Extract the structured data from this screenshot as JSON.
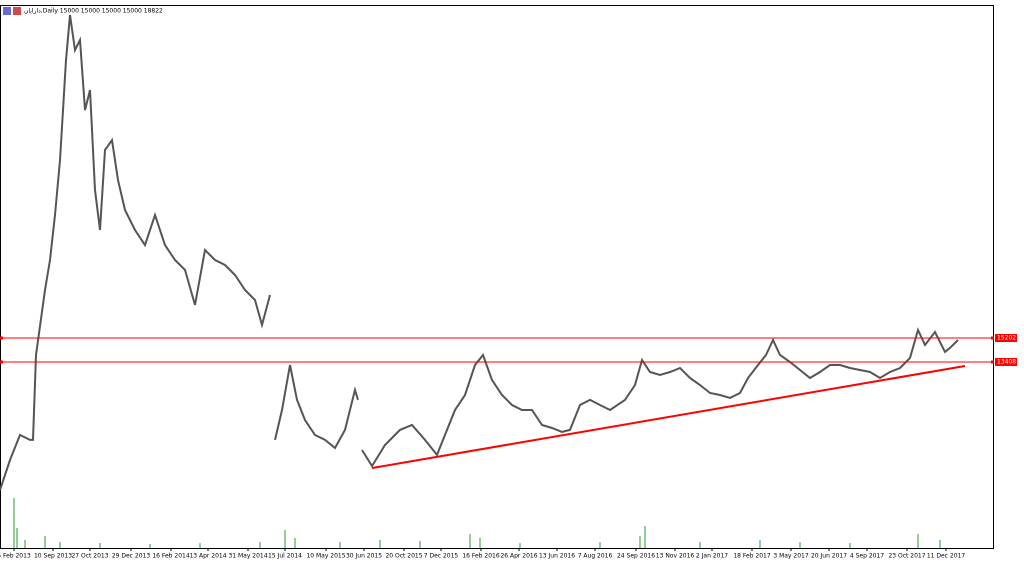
{
  "chart_data": {
    "type": "line",
    "title": "دارایان,Daily  15000 15000 15000 15000  18822",
    "xlim": [
      0,
      993
    ],
    "ylim": [
      -500,
      40100
    ],
    "xticks": [
      {
        "value": 14,
        "label": "5 Feb 2013"
      },
      {
        "value": 53,
        "label": "10 Sep 2013"
      },
      {
        "value": 90,
        "label": "27 Oct 2013"
      },
      {
        "value": 131,
        "label": "29 Dec 2013"
      },
      {
        "value": 171,
        "label": "16 Feb 2014"
      },
      {
        "value": 208,
        "label": "13 Apr 2014"
      },
      {
        "value": 248,
        "label": "31 May 2014"
      },
      {
        "value": 285,
        "label": "15 Jul 2014"
      },
      {
        "value": 326,
        "label": "10 May 2015"
      },
      {
        "value": 364,
        "label": "30 Jun 2015"
      },
      {
        "value": 404,
        "label": "20 Oct 2015"
      },
      {
        "value": 441,
        "label": "7 Dec 2015"
      },
      {
        "value": 481,
        "label": "16 Feb 2016"
      },
      {
        "value": 519,
        "label": "26 Apr 2016"
      },
      {
        "value": 557,
        "label": "13 Jun 2016"
      },
      {
        "value": 595,
        "label": "7 Aug 2016"
      },
      {
        "value": 636,
        "label": "24 Sep 2016"
      },
      {
        "value": 675,
        "label": "13 Nov 2016"
      },
      {
        "value": 712,
        "label": "2 Jan 2017"
      },
      {
        "value": 752,
        "label": "18 Feb 2017"
      },
      {
        "value": 791,
        "label": "3 May 2017"
      },
      {
        "value": 829,
        "label": "20 Jun 2017"
      },
      {
        "value": 867,
        "label": "4 Sep 2017"
      },
      {
        "value": 907,
        "label": "23 Oct 2017"
      },
      {
        "value": 946,
        "label": "11 Dec 2017"
      }
    ],
    "series": [
      {
        "color": "#555555",
        "x": [
          0,
          10,
          20,
          30,
          33,
          36,
          45,
          50,
          55,
          60,
          66,
          70,
          75,
          80,
          85,
          90,
          95,
          100,
          105,
          112,
          118,
          125,
          135,
          145,
          155,
          165,
          175,
          185,
          195,
          205,
          215,
          225,
          235,
          245,
          255,
          262,
          270,
          272,
          275,
          282,
          290,
          297,
          305,
          315,
          325,
          335,
          345,
          355,
          358,
          360,
          362,
          372,
          385,
          400,
          412,
          425,
          437,
          447,
          455,
          465,
          475,
          483,
          492,
          502,
          512,
          522,
          532,
          542,
          552,
          562,
          570,
          580,
          590,
          600,
          610,
          625,
          635,
          642,
          650,
          660,
          670,
          680,
          690,
          700,
          710,
          720,
          730,
          740,
          748,
          758,
          766,
          773,
          780,
          790,
          800,
          810,
          820,
          830,
          840,
          850,
          860,
          870,
          880,
          890,
          900,
          910,
          918,
          925,
          935,
          945,
          950,
          958
        ],
        "values": [
          3840,
          6080,
          7950,
          7580,
          7580,
          13930,
          18790,
          21030,
          24400,
          28500,
          35980,
          39350,
          36730,
          37480,
          32250,
          33740,
          26270,
          23280,
          29260,
          30000,
          27010,
          24770,
          23280,
          22150,
          24400,
          22150,
          21030,
          20290,
          17670,
          21780,
          21030,
          20660,
          19910,
          18790,
          18040,
          16170,
          18420,
          null,
          7580,
          9820,
          13180,
          10570,
          9070,
          7950,
          7580,
          6980,
          8330,
          11320,
          10570,
          null,
          6830,
          5630,
          7200,
          8330,
          8700,
          7580,
          6460,
          8330,
          9820,
          10940,
          13180,
          13930,
          12060,
          10940,
          10190,
          9820,
          9820,
          8700,
          8470,
          8180,
          8330,
          10190,
          10570,
          10190,
          9820,
          10570,
          11690,
          13560,
          12660,
          12440,
          12660,
          12960,
          12210,
          11690,
          11090,
          10940,
          10720,
          11090,
          12210,
          13180,
          13930,
          15050,
          13930,
          13410,
          12810,
          12210,
          12660,
          13180,
          13180,
          12960,
          12810,
          12660,
          12210,
          12660,
          12960,
          13710,
          15800,
          14680,
          15650,
          14160,
          14460,
          15050
        ]
      }
    ],
    "hlines": [
      {
        "value": 15202,
        "label": "15202"
      },
      {
        "value": 13408,
        "label": "13408"
      }
    ],
    "hline_color": "#ff0000",
    "trendline": {
      "x": [
        372,
        965
      ],
      "values": [
        5480,
        13110
      ],
      "color": "#ff0000"
    },
    "volume": {
      "color": "#2e9b2e",
      "ylim": [
        0,
        60
      ],
      "x": [
        14,
        17,
        25,
        45,
        60,
        100,
        150,
        200,
        260,
        285,
        295,
        340,
        380,
        420,
        470,
        480,
        520,
        600,
        640,
        645,
        700,
        760,
        800,
        850,
        918,
        940
      ],
      "values": [
        50,
        20,
        8,
        12,
        6,
        5,
        4,
        5,
        6,
        18,
        10,
        6,
        8,
        7,
        14,
        10,
        5,
        6,
        12,
        22,
        6,
        8,
        6,
        5,
        14,
        8
      ]
    }
  }
}
